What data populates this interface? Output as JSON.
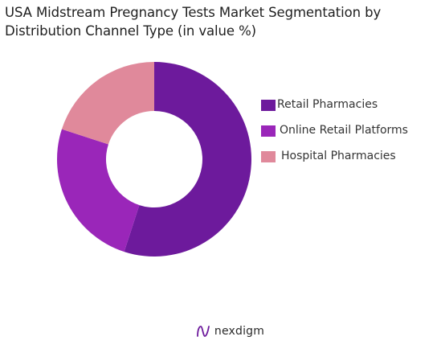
{
  "header": {
    "title_line1": "USA Midstream Pregnancy Tests Market Segmentation by",
    "title_line2": "Distribution Channel Type (in value %)"
  },
  "chart_data": {
    "type": "pie",
    "donut": true,
    "title": "USA Midstream Pregnancy Tests Market Segmentation by Distribution Channel Type (in value %)",
    "legend_position": "right",
    "series": [
      {
        "name": "Retail Pharmacies",
        "value": 55,
        "color": "#6d1a9c"
      },
      {
        "name": "Online Retail Platforms",
        "value": 25,
        "color": "#9a26b9"
      },
      {
        "name": "Hospital Pharmacies",
        "value": 20,
        "color": "#e0899b"
      }
    ]
  },
  "brand": {
    "name": "nexdigm",
    "icon": "nexdigm-logo-icon"
  }
}
